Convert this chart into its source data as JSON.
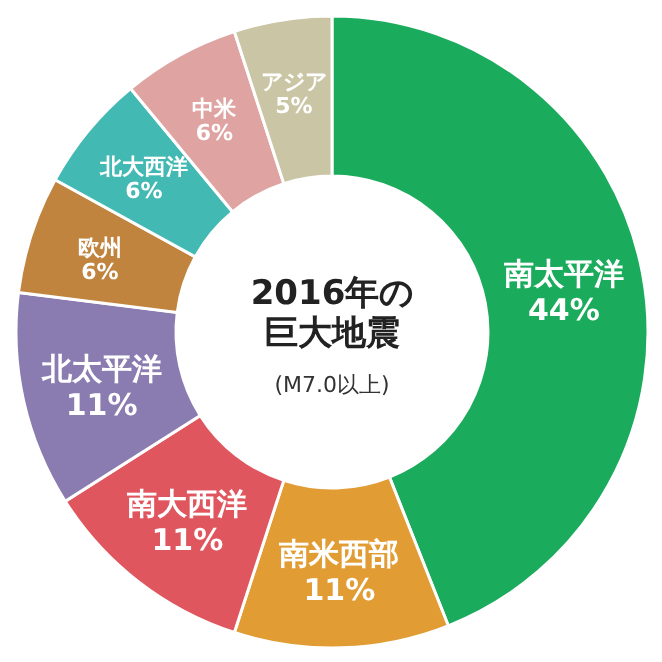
{
  "chart_data": {
    "type": "donut",
    "title": "2016年の巨大地震",
    "subtitle": "(M7.0以上)",
    "categories": [
      "南太平洋",
      "南米西部",
      "南大西洋",
      "北太平洋",
      "欧州",
      "北大西洋",
      "中米",
      "アジア"
    ],
    "values": [
      44,
      11,
      11,
      11,
      6,
      6,
      6,
      5
    ],
    "value_labels": [
      "44%",
      "11%",
      "11%",
      "11%",
      "6%",
      "6%",
      "6%",
      "5%"
    ],
    "colors": [
      "#1bab5c",
      "#e29c34",
      "#e0565e",
      "#8a7bb0",
      "#c1843f",
      "#43b9b3",
      "#dfa3a2",
      "#cac5a4"
    ]
  }
}
